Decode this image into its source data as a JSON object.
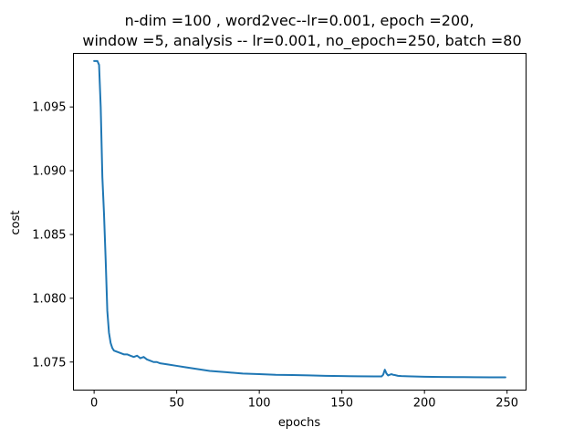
{
  "chart_data": {
    "type": "line",
    "title_lines": [
      "n-dim =100 , word2vec--lr=0.001, epoch =200,",
      "window =5, analysis -- lr=0.001, no_epoch=250, batch =80"
    ],
    "xlabel": "epochs",
    "ylabel": "cost",
    "xlim": [
      -12.5,
      261.5
    ],
    "ylim": [
      1.0728,
      1.0992
    ],
    "xticks": [
      0,
      50,
      100,
      150,
      200,
      250
    ],
    "yticks": [
      1.075,
      1.08,
      1.085,
      1.09,
      1.095
    ],
    "ytick_labels": [
      "1.075",
      "1.080",
      "1.085",
      "1.090",
      "1.095"
    ],
    "grid": false,
    "line_color": "#1f77b4",
    "series": [
      {
        "points": [
          [
            0,
            1.0986
          ],
          [
            1,
            1.0986
          ],
          [
            2,
            1.0986
          ],
          [
            3,
            1.0983
          ],
          [
            4,
            1.095
          ],
          [
            5,
            1.0895
          ],
          [
            6,
            1.0866
          ],
          [
            7,
            1.083
          ],
          [
            8,
            1.079
          ],
          [
            9,
            1.0773
          ],
          [
            10,
            1.0765
          ],
          [
            11,
            1.0761
          ],
          [
            12,
            1.0759
          ],
          [
            14,
            1.0758
          ],
          [
            16,
            1.0757
          ],
          [
            18,
            1.0756
          ],
          [
            20,
            1.0756
          ],
          [
            22,
            1.0755
          ],
          [
            24,
            1.0754
          ],
          [
            26,
            1.0755
          ],
          [
            28,
            1.0753
          ],
          [
            30,
            1.0754
          ],
          [
            32,
            1.0752
          ],
          [
            34,
            1.0751
          ],
          [
            36,
            1.075
          ],
          [
            38,
            1.075
          ],
          [
            40,
            1.0749
          ],
          [
            45,
            1.0748
          ],
          [
            50,
            1.0747
          ],
          [
            55,
            1.0746
          ],
          [
            60,
            1.0745
          ],
          [
            65,
            1.0744
          ],
          [
            70,
            1.0743
          ],
          [
            80,
            1.0742
          ],
          [
            90,
            1.0741
          ],
          [
            100,
            1.07405
          ],
          [
            110,
            1.074
          ],
          [
            120,
            1.07398
          ],
          [
            130,
            1.07395
          ],
          [
            140,
            1.07392
          ],
          [
            150,
            1.0739
          ],
          [
            160,
            1.07388
          ],
          [
            170,
            1.07387
          ],
          [
            174,
            1.07387
          ],
          [
            175,
            1.074
          ],
          [
            176,
            1.0744
          ],
          [
            177,
            1.0741
          ],
          [
            178,
            1.07395
          ],
          [
            179,
            1.074
          ],
          [
            180,
            1.07405
          ],
          [
            181,
            1.074
          ],
          [
            182,
            1.07398
          ],
          [
            184,
            1.07392
          ],
          [
            186,
            1.0739
          ],
          [
            190,
            1.07388
          ],
          [
            200,
            1.07385
          ],
          [
            210,
            1.07383
          ],
          [
            220,
            1.07382
          ],
          [
            230,
            1.07381
          ],
          [
            240,
            1.0738
          ],
          [
            249,
            1.0738
          ]
        ]
      }
    ]
  }
}
